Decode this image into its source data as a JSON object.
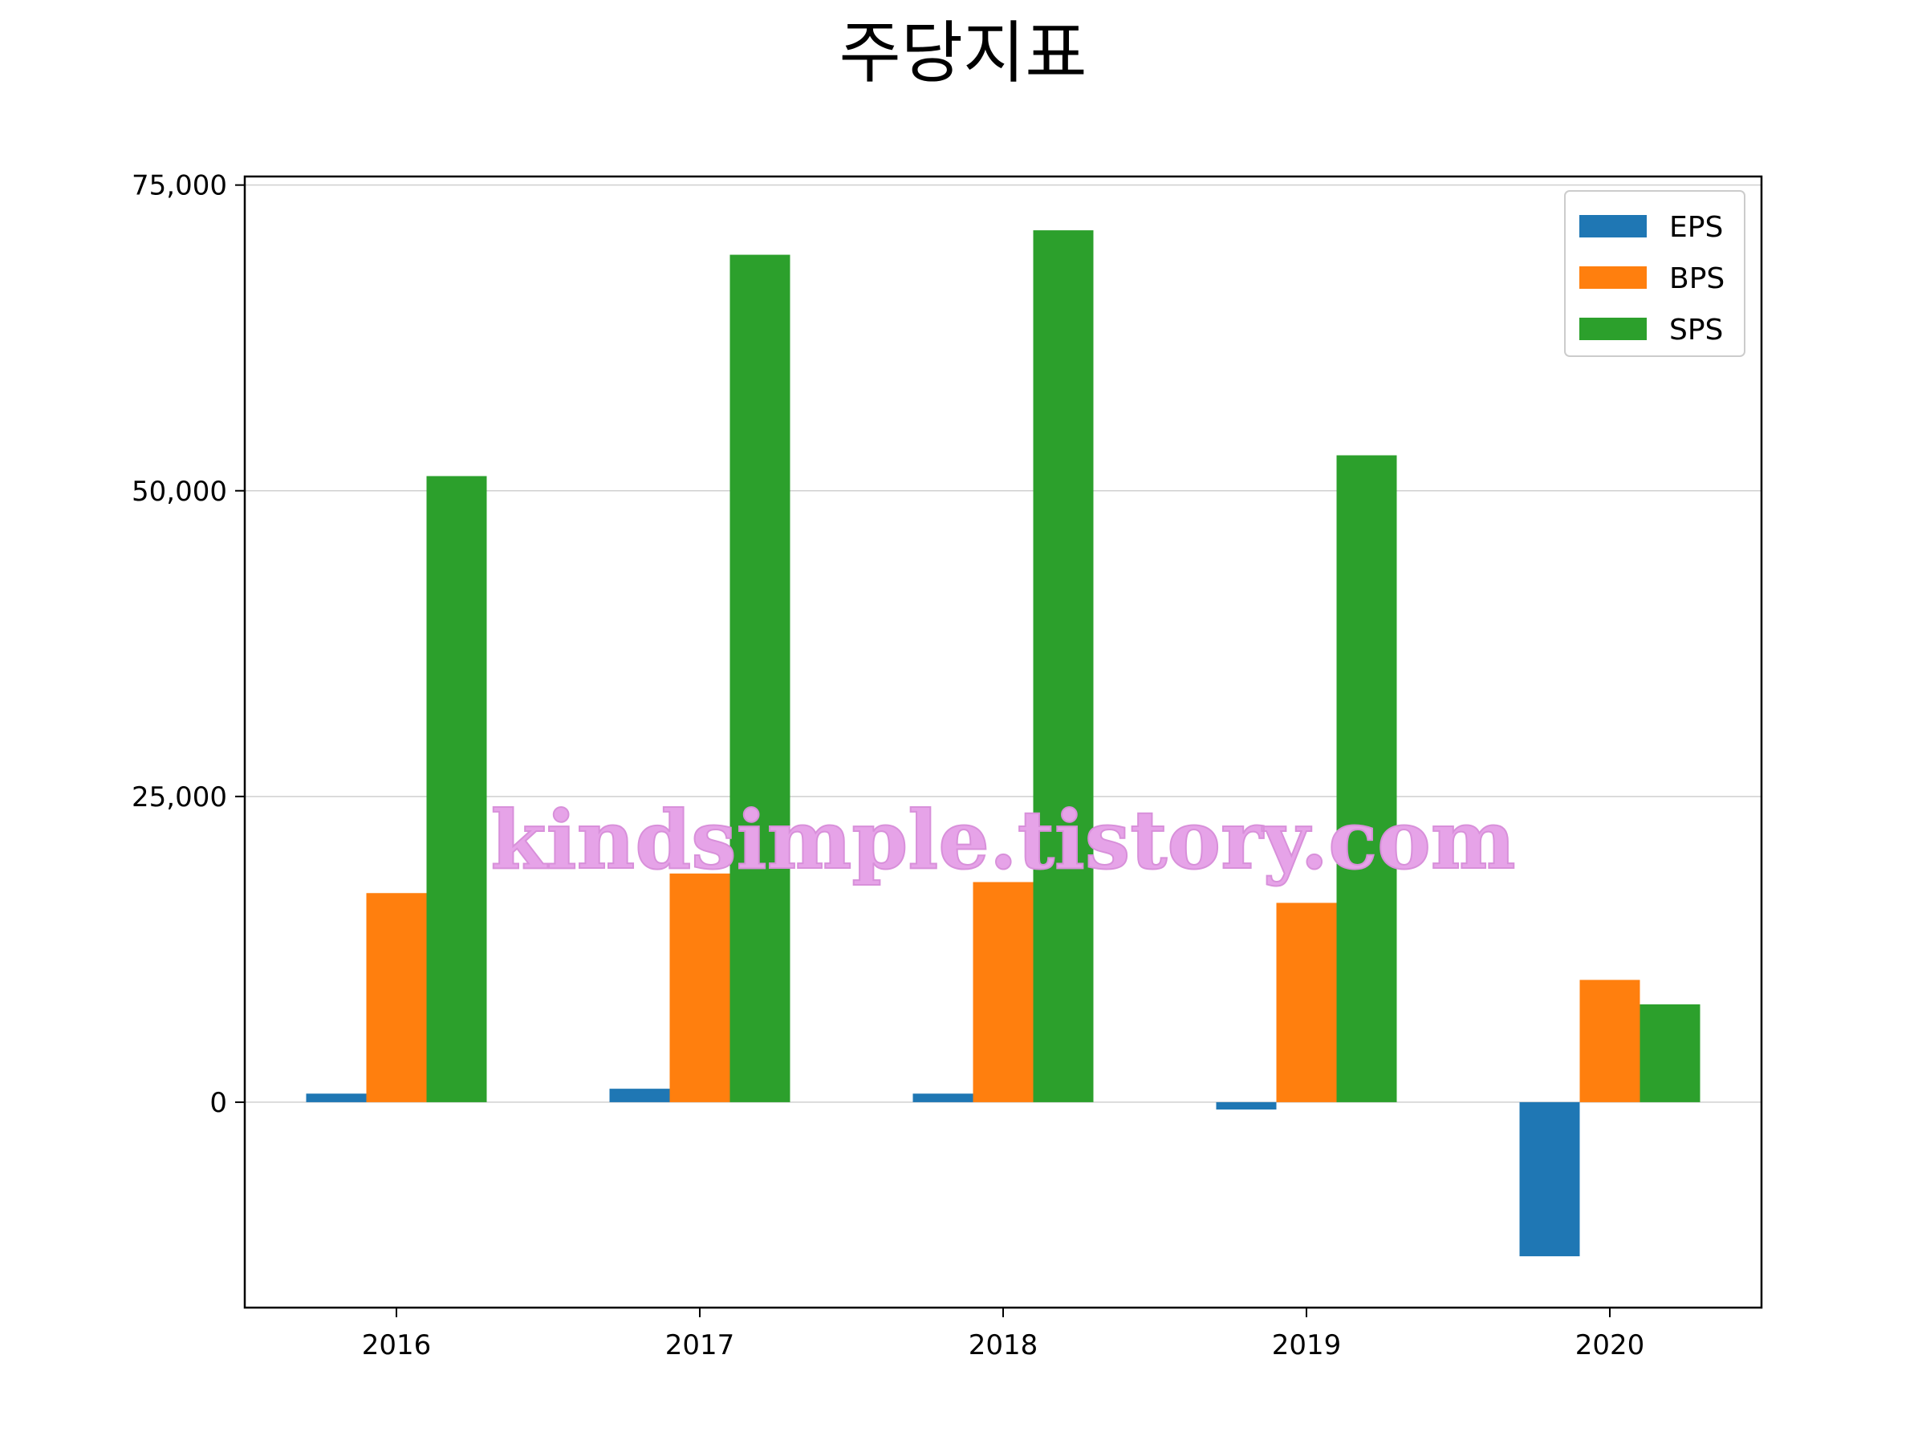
{
  "chart_data": {
    "type": "bar",
    "title": "주당지표",
    "xlabel": "",
    "ylabel": "",
    "categories": [
      "2016",
      "2017",
      "2018",
      "2019",
      "2020"
    ],
    "series": [
      {
        "name": "EPS",
        "color": "#1f77b4",
        "values": [
          700,
          1100,
          700,
          -600,
          -12600
        ]
      },
      {
        "name": "BPS",
        "color": "#ff7f0e",
        "values": [
          17100,
          18700,
          18000,
          16300,
          10000
        ]
      },
      {
        "name": "SPS",
        "color": "#2ca02c",
        "values": [
          51200,
          69300,
          71300,
          52900,
          8000
        ]
      }
    ],
    "ylim": [
      -16800,
      75700
    ],
    "yticks": [
      0,
      25000,
      50000,
      75000
    ],
    "ytick_labels": [
      "0",
      "25,000",
      "50,000",
      "75,000"
    ],
    "grid": true,
    "legend_position": "top-right",
    "watermark": "kindsimple.tistory.com"
  }
}
